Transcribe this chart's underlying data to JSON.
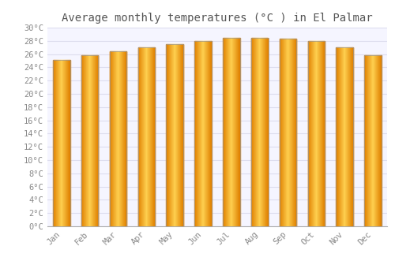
{
  "title": "Average monthly temperatures (°C ) in El Palmar",
  "months": [
    "Jan",
    "Feb",
    "Mar",
    "Apr",
    "May",
    "Jun",
    "Jul",
    "Aug",
    "Sep",
    "Oct",
    "Nov",
    "Dec"
  ],
  "values": [
    25.1,
    25.8,
    26.4,
    27.0,
    27.5,
    28.0,
    28.5,
    28.5,
    28.3,
    28.0,
    27.0,
    25.8
  ],
  "bar_color_center": "#FFD050",
  "bar_color_edge": "#E08000",
  "bar_outline_color": "#999999",
  "ylim": [
    0,
    30
  ],
  "ytick_step": 2,
  "background_color": "#ffffff",
  "plot_bg_color": "#f5f5ff",
  "grid_color": "#ddddee",
  "title_fontsize": 10,
  "tick_fontsize": 7.5,
  "tick_color": "#888888",
  "bar_width": 0.6
}
